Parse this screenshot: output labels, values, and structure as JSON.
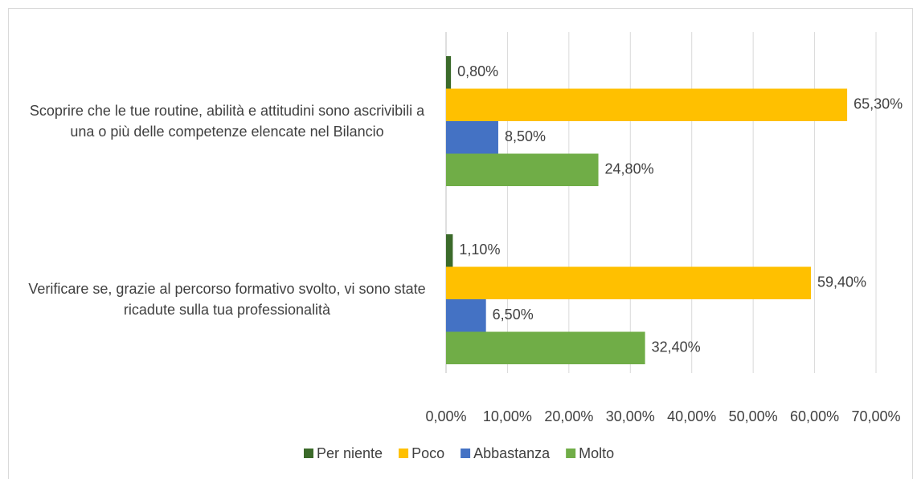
{
  "chart_data": {
    "type": "bar",
    "orientation": "horizontal",
    "categories": [
      "Scoprire che le tue routine, abilità e attitudini sono ascrivibili a una o più delle competenze elencate nel Bilancio",
      "Verificare se, grazie al percorso formativo svolto, vi sono state ricadute sulla tua professionalità"
    ],
    "series": [
      {
        "name": "Per niente",
        "color": "#3b6a2a",
        "values": [
          0.8,
          1.1
        ],
        "value_labels": [
          "0,80%",
          "1,10%"
        ]
      },
      {
        "name": "Poco",
        "color": "#ffc000",
        "values": [
          65.3,
          59.4
        ],
        "value_labels": [
          "65,30%",
          "59,40%"
        ]
      },
      {
        "name": "Abbastanza",
        "color": "#4472c4",
        "values": [
          8.5,
          6.5
        ],
        "value_labels": [
          "8,50%",
          "6,50%"
        ]
      },
      {
        "name": "Molto",
        "color": "#70ad47",
        "values": [
          24.8,
          32.4
        ],
        "value_labels": [
          "24,80%",
          "32,40%"
        ]
      }
    ],
    "xlim": [
      0,
      70
    ],
    "xticks": [
      {
        "value": 0,
        "label": "0,00%"
      },
      {
        "value": 10,
        "label": "10,00%"
      },
      {
        "value": 20,
        "label": "20,00%"
      },
      {
        "value": 30,
        "label": "30,00%"
      },
      {
        "value": 40,
        "label": "40,00%"
      },
      {
        "value": 50,
        "label": "50,00%"
      },
      {
        "value": 60,
        "label": "60,00%"
      },
      {
        "value": 70,
        "label": "70,00%"
      }
    ],
    "grid": true,
    "legend": "bottom"
  }
}
